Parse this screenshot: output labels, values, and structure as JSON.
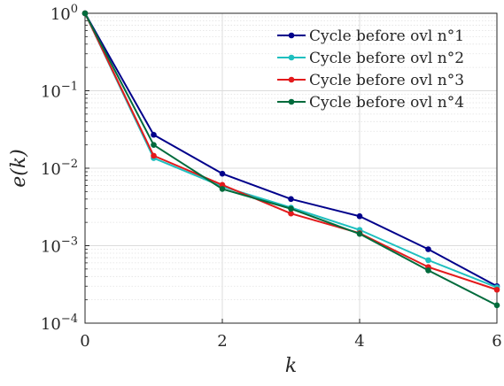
{
  "chart_data": {
    "type": "line",
    "title": "",
    "xlabel": "k",
    "ylabel": "e(k)",
    "xscale": "linear",
    "yscale": "log",
    "xlim": [
      0,
      6
    ],
    "ylim": [
      0.0001,
      1
    ],
    "xticks": [
      0,
      2,
      4,
      6
    ],
    "xtick_labels": [
      "0",
      "2",
      "4",
      "6"
    ],
    "yticks": [
      1,
      0.1,
      0.01,
      0.001,
      0.0001
    ],
    "ytick_labels": [
      {
        "base": "10",
        "exp": "0"
      },
      {
        "base": "10",
        "exp": "−1"
      },
      {
        "base": "10",
        "exp": "−2"
      },
      {
        "base": "10",
        "exp": "−3"
      },
      {
        "base": "10",
        "exp": "−4"
      }
    ],
    "grid": true,
    "minor_grid": true,
    "legend_position": "top-right",
    "x": [
      0,
      1,
      2,
      3,
      4,
      5,
      6
    ],
    "series": [
      {
        "name": "Cycle before ovl n°1",
        "color": "#00008b",
        "values": [
          1,
          0.027,
          0.0085,
          0.004,
          0.0024,
          0.0009,
          0.0003
        ]
      },
      {
        "name": "Cycle before ovl n°2",
        "color": "#1fbfbf",
        "values": [
          1,
          0.0135,
          0.0058,
          0.0031,
          0.0016,
          0.00065,
          0.00029
        ]
      },
      {
        "name": "Cycle before ovl n°3",
        "color": "#e31a1c",
        "values": [
          1,
          0.0145,
          0.0061,
          0.0026,
          0.00145,
          0.00053,
          0.00027
        ]
      },
      {
        "name": "Cycle before ovl n°4",
        "color": "#006b3c",
        "values": [
          1,
          0.02,
          0.0054,
          0.003,
          0.00142,
          0.00048,
          0.00017
        ]
      }
    ]
  }
}
